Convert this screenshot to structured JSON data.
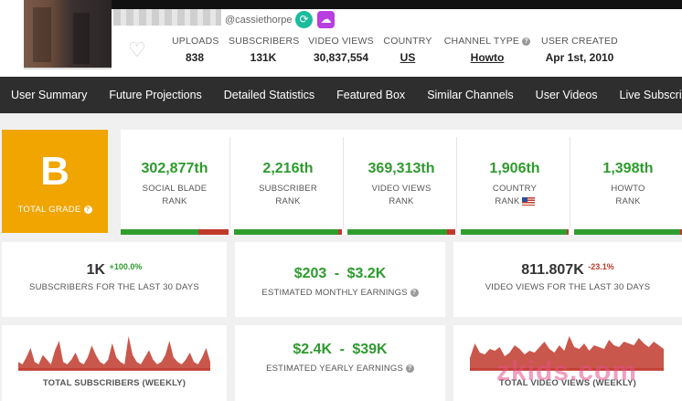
{
  "channel": {
    "handle": "@cassiethorpe"
  },
  "header_stats": [
    {
      "label": "UPLOADS",
      "value": "838"
    },
    {
      "label": "SUBSCRIBERS",
      "value": "131K"
    },
    {
      "label": "VIDEO VIEWS",
      "value": "30,837,554"
    },
    {
      "label": "COUNTRY",
      "value": "US"
    },
    {
      "label": "CHANNEL TYPE",
      "value": "Howto"
    },
    {
      "label": "USER CREATED",
      "value": "Apr 1st, 2010"
    }
  ],
  "nav": [
    "User Summary",
    "Future Projections",
    "Detailed Statistics",
    "Featured Box",
    "Similar Channels",
    "User Videos",
    "Live Subscriber"
  ],
  "grade": {
    "letter": "B",
    "label": "TOTAL GRADE"
  },
  "ranks": [
    {
      "value": "302,877th",
      "label1": "SOCIAL BLADE",
      "label2": "RANK",
      "red_fraction": 0.28
    },
    {
      "value": "2,216th",
      "label1": "SUBSCRIBER",
      "label2": "RANK",
      "red_fraction": 0.03
    },
    {
      "value": "369,313th",
      "label1": "VIDEO VIEWS",
      "label2": "RANK",
      "red_fraction": 0.08
    },
    {
      "value": "1,906th",
      "label1": "COUNTRY",
      "label2": "RANK",
      "red_fraction": 0.02
    },
    {
      "value": "1,398th",
      "label1": "HOWTO",
      "label2": "RANK",
      "red_fraction": 0.02
    }
  ],
  "subs30": {
    "value": "1K",
    "change": "+100.0%",
    "label": "SUBSCRIBERS FOR THE LAST 30 DAYS"
  },
  "monthly": {
    "low": "$203",
    "sep": "-",
    "high": "$3.2K",
    "label": "ESTIMATED MONTHLY EARNINGS"
  },
  "views30": {
    "value": "811.807K",
    "change": "-23.1%",
    "label": "VIDEO VIEWS FOR THE LAST 30 DAYS"
  },
  "yearly": {
    "low": "$2.4K",
    "sep": "-",
    "high": "$39K",
    "label": "ESTIMATED YEARLY EARNINGS"
  },
  "spark_subs": {
    "label": "TOTAL SUBSCRIBERS (WEEKLY)",
    "color": "#c0392b",
    "values": [
      3,
      2,
      5,
      9,
      3,
      2,
      6,
      4,
      2,
      8,
      12,
      3,
      2,
      4,
      7,
      3,
      2,
      5,
      10,
      6,
      3,
      2,
      4,
      11,
      5,
      3,
      2,
      14,
      6,
      3,
      2,
      5,
      8,
      4,
      2,
      3,
      6,
      12,
      5,
      3,
      2,
      4,
      7,
      3,
      2,
      5,
      9,
      3
    ]
  },
  "spark_views": {
    "label": "TOTAL VIDEO VIEWS (WEEKLY)",
    "color": "#c0392b",
    "values": [
      6,
      14,
      9,
      8,
      11,
      10,
      12,
      7,
      9,
      13,
      11,
      8,
      10,
      9,
      12,
      15,
      11,
      9,
      13,
      10,
      18,
      12,
      11,
      14,
      10,
      13,
      12,
      11,
      16,
      13,
      12,
      15,
      14,
      13,
      17,
      14,
      12,
      15,
      13,
      11
    ]
  },
  "watermark": "zkids.com"
}
